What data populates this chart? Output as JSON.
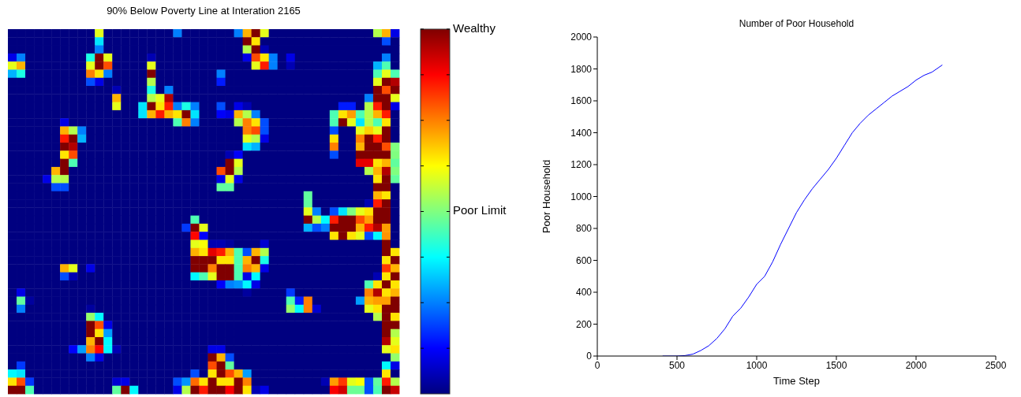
{
  "chart_data": [
    {
      "type": "heatmap",
      "title": "90% Below Poverty Line at Interation 2165",
      "categories": [
        null,
        null,
        null,
        null,
        null,
        null,
        null,
        null,
        null,
        null,
        null,
        null,
        null,
        null,
        null,
        null,
        null,
        null,
        null,
        null,
        null,
        null,
        null,
        null,
        null,
        null,
        null,
        null,
        null,
        null,
        null,
        null,
        null,
        null,
        null,
        null,
        null,
        null,
        null,
        null,
        null,
        null,
        null,
        null,
        null
      ],
      "y_categories": [
        null,
        null,
        null,
        null,
        null,
        null,
        null,
        null,
        null,
        null,
        null,
        null,
        null,
        null,
        null,
        null,
        null,
        null,
        null,
        null,
        null,
        null,
        null,
        null,
        null,
        null,
        null,
        null,
        null,
        null,
        null,
        null,
        null,
        null,
        null,
        null,
        null,
        null,
        null,
        null,
        null,
        null,
        null,
        null,
        null
      ],
      "clim": [
        0,
        1
      ],
      "cticks": [
        {
          "value": 0.125,
          "label": null
        },
        {
          "value": 0.25,
          "label": null
        },
        {
          "value": 0.375,
          "label": null
        },
        {
          "value": 0.5,
          "label": "Poor Limit"
        },
        {
          "value": 0.625,
          "label": null
        },
        {
          "value": 0.75,
          "label": null
        },
        {
          "value": 0.875,
          "label": null
        },
        {
          "value": 1,
          "label": "Wealthy"
        }
      ],
      "cells": [
        [
          0,
          0,
          0,
          0,
          0,
          0,
          0,
          0,
          0,
          0,
          0.6,
          0,
          0,
          0,
          0,
          0,
          0,
          0,
          0,
          0.25,
          0,
          0,
          0,
          0,
          0,
          0,
          0.25,
          0.7,
          1,
          0.6,
          0,
          0,
          0,
          0,
          0,
          0,
          0,
          0,
          0,
          0,
          0,
          0,
          0.55,
          0.7,
          0.1
        ],
        [
          0,
          0,
          0,
          0,
          0,
          0,
          0,
          0,
          0,
          0,
          0.35,
          0,
          0,
          0,
          0,
          0,
          0,
          0,
          0,
          0,
          0,
          0,
          0,
          0,
          0,
          0,
          0,
          1,
          0.65,
          0,
          0,
          0,
          0,
          0,
          0,
          0,
          0,
          0,
          0,
          0,
          0,
          0,
          0,
          0.2,
          0
        ],
        [
          0,
          0,
          0,
          0,
          0,
          0,
          0,
          0,
          0,
          0,
          0.25,
          0,
          0,
          0,
          0,
          0,
          0,
          0,
          0,
          0,
          0,
          0,
          0,
          0,
          0,
          0,
          0,
          0.55,
          1,
          0.05,
          0,
          0,
          0,
          0,
          0,
          0,
          0,
          0,
          0,
          0,
          0,
          0,
          0,
          0,
          0
        ],
        [
          0.1,
          0.25,
          0,
          0,
          0,
          0,
          0,
          0,
          0,
          0.4,
          1,
          0.6,
          0,
          0,
          0,
          0,
          0.05,
          0,
          0,
          0,
          0,
          0,
          0,
          0,
          0,
          0,
          0,
          0.1,
          0.8,
          0.65,
          0.25,
          0,
          0.1,
          0,
          0,
          0,
          0,
          0,
          0,
          0,
          0,
          0,
          0,
          0.25,
          0
        ],
        [
          0.6,
          0.7,
          0,
          0,
          0,
          0,
          0,
          0,
          0,
          0.6,
          1,
          0.8,
          0,
          0,
          0,
          0,
          0.6,
          0,
          0,
          0,
          0,
          0,
          0,
          0,
          0,
          0,
          0,
          0,
          0.6,
          0.85,
          0.25,
          0,
          0.05,
          0,
          0,
          0,
          0,
          0,
          0,
          0,
          0,
          0,
          0.3,
          0.45,
          0
        ],
        [
          0.3,
          0.4,
          0,
          0,
          0,
          0,
          0,
          0,
          0,
          0.75,
          0.65,
          0.25,
          0,
          0,
          0,
          0,
          1,
          0,
          0,
          0,
          0,
          0,
          0,
          0,
          0.25,
          0,
          0,
          0,
          0,
          0,
          0,
          0,
          0,
          0,
          0,
          0,
          0,
          0,
          0,
          0,
          0,
          0,
          0.45,
          0.6,
          0.45
        ],
        [
          0,
          0,
          0,
          0,
          0,
          0,
          0,
          0,
          0,
          0.2,
          0.1,
          0,
          0,
          0,
          0,
          0,
          0.55,
          0,
          0,
          0,
          0,
          0,
          0,
          0,
          0.15,
          0,
          0,
          0,
          0,
          0,
          0,
          0,
          0,
          0,
          0,
          0,
          0,
          0,
          0,
          0,
          0,
          0,
          0.6,
          1,
          0.95
        ],
        [
          0,
          0,
          0,
          0,
          0,
          0,
          0,
          0,
          0,
          0,
          0,
          0,
          0.05,
          0,
          0,
          0,
          0.4,
          0,
          0.25,
          0,
          0,
          0,
          0,
          0,
          0,
          0,
          0,
          0,
          0,
          0,
          0,
          0,
          0,
          0,
          0,
          0,
          0,
          0,
          0,
          0,
          0,
          0,
          1,
          0.8,
          1
        ],
        [
          0,
          0,
          0,
          0,
          0,
          0,
          0,
          0,
          0,
          0,
          0,
          0,
          0.7,
          0,
          0,
          0,
          0.55,
          0.6,
          0.95,
          0,
          0,
          0,
          0,
          0,
          0,
          0,
          0,
          0,
          0,
          0,
          0,
          0,
          0,
          0,
          0,
          0,
          0,
          0,
          0,
          0,
          0,
          0.25,
          1,
          1,
          0.6
        ],
        [
          0,
          0,
          0,
          0,
          0,
          0,
          0,
          0,
          0,
          0,
          0,
          0,
          0.6,
          0,
          0,
          0.35,
          1,
          0.65,
          0.85,
          0.25,
          0.4,
          0.25,
          0,
          0,
          0.2,
          0,
          0.1,
          0.05,
          0,
          0,
          0,
          0,
          0,
          0,
          0,
          0,
          0,
          0,
          0.15,
          0.15,
          0,
          0.55,
          0.85,
          1,
          0.1
        ],
        [
          0,
          0,
          0,
          0,
          0,
          0,
          0,
          0,
          0,
          0,
          0,
          0,
          0,
          0,
          0,
          0.35,
          0.7,
          0.85,
          0.7,
          0.65,
          1,
          0.35,
          0,
          0,
          0.12,
          0.1,
          0.7,
          0.55,
          0.25,
          0,
          0,
          0,
          0,
          0,
          0,
          0,
          0,
          0.45,
          0.65,
          0.72,
          0.45,
          0.55,
          0.7,
          0.85,
          0
        ],
        [
          0,
          0,
          0,
          0,
          0,
          0,
          0.1,
          0,
          0,
          0,
          0,
          0,
          0,
          0,
          0,
          0,
          0,
          0,
          0,
          0.45,
          0.75,
          0.25,
          0,
          0,
          0,
          0,
          0.55,
          0.75,
          0.65,
          0.2,
          0,
          0,
          0,
          0,
          0,
          0,
          0,
          0.45,
          1,
          0.6,
          0.35,
          0.55,
          0.45,
          0.65,
          0
        ],
        [
          0,
          0,
          0,
          0,
          0,
          0,
          0.7,
          0.55,
          0.25,
          0,
          0,
          0,
          0,
          0,
          0,
          0,
          0,
          0,
          0,
          0,
          0,
          0,
          0,
          0,
          0,
          0,
          0,
          0.75,
          0.8,
          0.2,
          0,
          0,
          0,
          0,
          0,
          0,
          0,
          0.2,
          0,
          0,
          0.6,
          0.67,
          0.6,
          1,
          0
        ],
        [
          0,
          0,
          0,
          0,
          0,
          0,
          0.85,
          1,
          0.3,
          0,
          0,
          0,
          0,
          0,
          0,
          0,
          0,
          0,
          0,
          0,
          0,
          0,
          0,
          0,
          0,
          0,
          0,
          0.6,
          0.55,
          0.1,
          0,
          0,
          0,
          0,
          0,
          0,
          0,
          0.65,
          0,
          0,
          0.75,
          1,
          0.85,
          1,
          0
        ],
        [
          0,
          0,
          0,
          0,
          0,
          0,
          1,
          0.95,
          0,
          0,
          0,
          0,
          0,
          0,
          0,
          0,
          0,
          0,
          0,
          0,
          0,
          0,
          0,
          0,
          0,
          0,
          0,
          0.35,
          0.3,
          0,
          0,
          0,
          0,
          0,
          0,
          0,
          0,
          0.75,
          0,
          0,
          0.7,
          1,
          1,
          0.8,
          0.5
        ],
        [
          0,
          0,
          0,
          0,
          0,
          0,
          0.65,
          0.8,
          0,
          0,
          0,
          0,
          0,
          0,
          0,
          0,
          0,
          0,
          0,
          0,
          0,
          0,
          0,
          0,
          0,
          0.05,
          0.12,
          0,
          0,
          0,
          0,
          0,
          0,
          0,
          0,
          0,
          0,
          0.2,
          0,
          0,
          1,
          1,
          1,
          1,
          0.5
        ],
        [
          0,
          0,
          0,
          0,
          0,
          0,
          1,
          0.45,
          0,
          0,
          0,
          0,
          0,
          0,
          0,
          0,
          0,
          0,
          0,
          0,
          0,
          0,
          0,
          0,
          0,
          1,
          0.6,
          0,
          0,
          0,
          0,
          0,
          0,
          0,
          0,
          0,
          0,
          0,
          0,
          0,
          0.9,
          0.9,
          0.65,
          0.7,
          0.47
        ],
        [
          0,
          0,
          0,
          0,
          0,
          0.7,
          1,
          0,
          0,
          0,
          0,
          0,
          0,
          0,
          0,
          0,
          0,
          0,
          0,
          0,
          0,
          0,
          0,
          0,
          0.8,
          1,
          0.55,
          0,
          0,
          0,
          0,
          0,
          0,
          0,
          0,
          0,
          0,
          0,
          0,
          0,
          0,
          0.55,
          0.7,
          0.95,
          0.5
        ],
        [
          0,
          0,
          0,
          0,
          0.1,
          0.55,
          0.55,
          0,
          0,
          0,
          0,
          0,
          0,
          0,
          0,
          0,
          0,
          0,
          0,
          0,
          0,
          0,
          0,
          0,
          0.1,
          0.6,
          0.1,
          0,
          0,
          0,
          0,
          0,
          0,
          0,
          0,
          0,
          0,
          0,
          0,
          0,
          0,
          0,
          0.65,
          1,
          0.47
        ],
        [
          0,
          0,
          0,
          0,
          0,
          0.2,
          0.2,
          0,
          0,
          0,
          0,
          0,
          0,
          0,
          0,
          0,
          0,
          0,
          0,
          0,
          0,
          0,
          0,
          0,
          0.47,
          0.47,
          0,
          0,
          0,
          0,
          0,
          0,
          0,
          0,
          0,
          0,
          0,
          0,
          0,
          0,
          0,
          0,
          1,
          1,
          0
        ],
        [
          0,
          0,
          0,
          0,
          0,
          0,
          0,
          0,
          0,
          0,
          0,
          0,
          0,
          0,
          0,
          0,
          0,
          0,
          0,
          0,
          0,
          0,
          0,
          0,
          0,
          0,
          0,
          0,
          0,
          0,
          0,
          0,
          0,
          0,
          0.47,
          0,
          0,
          0,
          0,
          0,
          0,
          0,
          0.7,
          0.65,
          0
        ],
        [
          0,
          0,
          0,
          0,
          0,
          0,
          0,
          0,
          0,
          0,
          0,
          0,
          0,
          0,
          0,
          0,
          0,
          0,
          0,
          0,
          0,
          0,
          0,
          0,
          0,
          0,
          0,
          0,
          0,
          0,
          0,
          0,
          0,
          0,
          0.47,
          0,
          0,
          0,
          0,
          0,
          0,
          0.05,
          0.85,
          1,
          0
        ],
        [
          0,
          0,
          0,
          0,
          0,
          0,
          0,
          0,
          0,
          0,
          0,
          0,
          0,
          0,
          0,
          0,
          0,
          0,
          0,
          0,
          0,
          0,
          0,
          0,
          0,
          0,
          0,
          0,
          0,
          0,
          0,
          0,
          0,
          0,
          0.6,
          0.25,
          0,
          0.2,
          0.35,
          0.5,
          0.6,
          0.65,
          1,
          1,
          0
        ],
        [
          0,
          0,
          0,
          0,
          0,
          0,
          0,
          0,
          0,
          0,
          0,
          0,
          0,
          0,
          0,
          0,
          0,
          0,
          0,
          0,
          0,
          0.45,
          0,
          0,
          0,
          0,
          0,
          0,
          0,
          0,
          0,
          0,
          0,
          0,
          1,
          0.55,
          0.37,
          0.85,
          1,
          1,
          0.8,
          0.72,
          1,
          1,
          0
        ],
        [
          0,
          0,
          0,
          0,
          0,
          0,
          0,
          0,
          0,
          0,
          0,
          0,
          0,
          0,
          0,
          0,
          0,
          0,
          0,
          0,
          0.18,
          1,
          0.6,
          0,
          0,
          0,
          0,
          0,
          0,
          0,
          0,
          0,
          0,
          0,
          0.3,
          0.2,
          0.25,
          1,
          1,
          1,
          0.7,
          0.85,
          0.95,
          0.72,
          0
        ],
        [
          0,
          0,
          0,
          0,
          0,
          0,
          0,
          0,
          0,
          0,
          0,
          0,
          0,
          0,
          0,
          0,
          0,
          0,
          0,
          0,
          0,
          0.87,
          0.12,
          0,
          0,
          0,
          0,
          0,
          0,
          0,
          0,
          0,
          0,
          0,
          0,
          0,
          0,
          0.65,
          1,
          0.65,
          0.6,
          0.2,
          0.37,
          0.73,
          0
        ],
        [
          0,
          0,
          0,
          0,
          0,
          0,
          0,
          0,
          0,
          0,
          0,
          0,
          0,
          0,
          0,
          0,
          0,
          0,
          0,
          0,
          0,
          0.6,
          0.62,
          0.05,
          0.05,
          0.03,
          0,
          0,
          0,
          0.08,
          0,
          0,
          0,
          0,
          0,
          0,
          0,
          0,
          0,
          0,
          0,
          0,
          0,
          1,
          0
        ],
        [
          0,
          0,
          0,
          0,
          0,
          0,
          0,
          0,
          0,
          0,
          0,
          0,
          0,
          0,
          0,
          0,
          0,
          0,
          0,
          0,
          0,
          0.7,
          0.65,
          0.9,
          0.85,
          0.7,
          0.45,
          0.2,
          0.7,
          0.55,
          0,
          0,
          0,
          0,
          0,
          0,
          0,
          0,
          0,
          0,
          0,
          0,
          0,
          1,
          0.65
        ],
        [
          0,
          0,
          0,
          0,
          0,
          0,
          0,
          0,
          0,
          0,
          0,
          0,
          0,
          0,
          0,
          0,
          0,
          0,
          0,
          0,
          0,
          1,
          1,
          1,
          0.65,
          0.65,
          0.45,
          0.7,
          1,
          0.4,
          0,
          0,
          0,
          0,
          0,
          0,
          0,
          0,
          0,
          0,
          0,
          0,
          0,
          0.65,
          1
        ],
        [
          0,
          0,
          0,
          0,
          0,
          0,
          0.7,
          0.6,
          0,
          0.1,
          0,
          0,
          0,
          0,
          0,
          0,
          0,
          0,
          0,
          0,
          0,
          1,
          1,
          0.75,
          1,
          1,
          0.45,
          0.75,
          0.7,
          0.1,
          0,
          0,
          0,
          0,
          0,
          0,
          0,
          0,
          0,
          0,
          0,
          0,
          0,
          0.82,
          0.7
        ],
        [
          0,
          0,
          0,
          0,
          0,
          0,
          0.2,
          0.05,
          0,
          0,
          0,
          0,
          0,
          0,
          0,
          0,
          0,
          0,
          0,
          0,
          0,
          0.37,
          0.45,
          0.6,
          1,
          1,
          0.45,
          0.1,
          0.37,
          0,
          0,
          0,
          0,
          0,
          0,
          0,
          0,
          0,
          0,
          0,
          0,
          0,
          0.05,
          0.65,
          1
        ],
        [
          0,
          0,
          0,
          0,
          0,
          0,
          0,
          0,
          0,
          0,
          0,
          0,
          0,
          0,
          0,
          0,
          0,
          0,
          0,
          0,
          0,
          0,
          0,
          0,
          0.12,
          0.25,
          0.27,
          0.37,
          0.1,
          0,
          0,
          0,
          0,
          0,
          0,
          0,
          0,
          0,
          0,
          0,
          0,
          0.45,
          0.65,
          1,
          0.65
        ],
        [
          0,
          0.1,
          0,
          0,
          0,
          0,
          0,
          0,
          0,
          0,
          0,
          0,
          0,
          0,
          0,
          0,
          0,
          0,
          0,
          0,
          0,
          0,
          0,
          0,
          0,
          0,
          0,
          0.03,
          0,
          0,
          0,
          0,
          0.18,
          0,
          0,
          0,
          0,
          0,
          0,
          0,
          0,
          0.75,
          0.95,
          0.65,
          0.7
        ],
        [
          0,
          0.47,
          0.03,
          0,
          0,
          0,
          0,
          0,
          0,
          0,
          0,
          0,
          0,
          0,
          0,
          0,
          0,
          0,
          0,
          0,
          0,
          0,
          0,
          0,
          0,
          0,
          0,
          0,
          0,
          0,
          0,
          0,
          0.45,
          0.15,
          0.75,
          0,
          0,
          0,
          0,
          0,
          0.28,
          0.7,
          0.72,
          0.72,
          1
        ],
        [
          0,
          0.25,
          0,
          0,
          0,
          0,
          0,
          0,
          0,
          0.03,
          0,
          0,
          0,
          0,
          0,
          0,
          0,
          0,
          0,
          0,
          0,
          0,
          0,
          0,
          0,
          0,
          0,
          0,
          0,
          0,
          0,
          0,
          0.52,
          0.37,
          0.75,
          0.08,
          0,
          0,
          0,
          0,
          0,
          0.6,
          0.65,
          1,
          1
        ],
        [
          0,
          0,
          0,
          0,
          0,
          0,
          0,
          0,
          0,
          0.52,
          0.37,
          0,
          0,
          0,
          0,
          0,
          0,
          0,
          0,
          0,
          0,
          0,
          0,
          0,
          0,
          0,
          0,
          0,
          0,
          0,
          0,
          0,
          0,
          0,
          0,
          0,
          0,
          0,
          0,
          0,
          0,
          0,
          0.55,
          1,
          0.65
        ],
        [
          0,
          0,
          0,
          0,
          0,
          0,
          0,
          0,
          0,
          1,
          0.8,
          0.1,
          0,
          0,
          0,
          0,
          0,
          0,
          0,
          0,
          0,
          0,
          0,
          0,
          0,
          0,
          0,
          0,
          0,
          0,
          0,
          0,
          0,
          0,
          0,
          0,
          0,
          0,
          0,
          0,
          0,
          0,
          0,
          1,
          1
        ],
        [
          0,
          0,
          0,
          0,
          0,
          0,
          0,
          0,
          0,
          1,
          0.65,
          0.28,
          0,
          0,
          0,
          0,
          0,
          0,
          0,
          0,
          0,
          0,
          0,
          0,
          0,
          0,
          0,
          0,
          0,
          0,
          0,
          0,
          0,
          0,
          0,
          0,
          0,
          0,
          0,
          0,
          0,
          0,
          0,
          1,
          0.55
        ],
        [
          0,
          0,
          0,
          0,
          0,
          0,
          0,
          0,
          0,
          0.7,
          1,
          0.37,
          0,
          0,
          0,
          0,
          0,
          0,
          0,
          0,
          0,
          0,
          0,
          0,
          0,
          0,
          0,
          0,
          0,
          0,
          0,
          0,
          0,
          0,
          0,
          0,
          0,
          0,
          0,
          0,
          0,
          0,
          0,
          0.95,
          0.6
        ],
        [
          0,
          0,
          0,
          0,
          0,
          0,
          0,
          0.12,
          0.28,
          0.75,
          0.87,
          0.37,
          0.05,
          0,
          0,
          0,
          0,
          0,
          0,
          0,
          0,
          0,
          0,
          0.1,
          0.1,
          0,
          0,
          0,
          0,
          0,
          0,
          0,
          0,
          0,
          0,
          0,
          0,
          0,
          0,
          0,
          0,
          0,
          0,
          0.6,
          0.65
        ],
        [
          0,
          0,
          0,
          0,
          0,
          0,
          0,
          0,
          0,
          0.25,
          0.1,
          0,
          0,
          0,
          0,
          0,
          0,
          0,
          0,
          0,
          0,
          0,
          0,
          1,
          0.7,
          0.2,
          0,
          0,
          0,
          0,
          0,
          0,
          0,
          0,
          0,
          0,
          0,
          0,
          0,
          0,
          0,
          0,
          0,
          0,
          0.52
        ],
        [
          0,
          0.18,
          0,
          0,
          0,
          0,
          0,
          0,
          0,
          0,
          0,
          0,
          0,
          0,
          0,
          0,
          0,
          0,
          0,
          0,
          0,
          0,
          0,
          0.8,
          1,
          0.47,
          0,
          0,
          0,
          0,
          0,
          0,
          0,
          0,
          0,
          0,
          0,
          0,
          0,
          0,
          0,
          0,
          0,
          0.37,
          0.1
        ],
        [
          0.37,
          0.35,
          0,
          0,
          0,
          0,
          0,
          0,
          0,
          0,
          0,
          0,
          0,
          0,
          0,
          0,
          0,
          0,
          0,
          0,
          0,
          0.2,
          0,
          0.65,
          1,
          0.8,
          0.7,
          0.28,
          0,
          0,
          0,
          0,
          0,
          0,
          0,
          0,
          0,
          0,
          0,
          0,
          0,
          0,
          0,
          0.65,
          0
        ],
        [
          0.65,
          0.8,
          0.18,
          0,
          0,
          0,
          0,
          0,
          0,
          0,
          0,
          0,
          0.08,
          0.1,
          0,
          0,
          0,
          0,
          0,
          0.2,
          0.27,
          0.77,
          0.65,
          1,
          0.65,
          0.65,
          1,
          0.75,
          0,
          0,
          0,
          0,
          0,
          0,
          0,
          0,
          0.05,
          0.72,
          0.82,
          0.6,
          0.62,
          0.2,
          0.47,
          0.85,
          0.55
        ],
        [
          1,
          1,
          0.45,
          0,
          0,
          0,
          0,
          0,
          0,
          0,
          0,
          0,
          0.47,
          1,
          0.37,
          0,
          0,
          0,
          0,
          0.1,
          0.55,
          1,
          0.85,
          1,
          1,
          0.88,
          1,
          0.65,
          0.05,
          0.1,
          0,
          0,
          0,
          0,
          0,
          0,
          0,
          0.88,
          0.92,
          0.48,
          0.48,
          0.2,
          0.45,
          1,
          0.93
        ]
      ]
    },
    {
      "type": "line",
      "title": "Number of Poor Household",
      "xlabel": "Time Step",
      "ylabel": "Poor Household",
      "x": [
        410,
        500,
        550,
        600,
        650,
        700,
        750,
        800,
        850,
        900,
        950,
        1000,
        1050,
        1100,
        1150,
        1200,
        1250,
        1300,
        1350,
        1400,
        1450,
        1500,
        1550,
        1600,
        1650,
        1700,
        1750,
        1800,
        1850,
        1900,
        1950,
        2000,
        2050,
        2100,
        2165
      ],
      "series": [
        {
          "color": "#0000ff",
          "values": [
            0,
            0,
            3,
            12,
            35,
            65,
            110,
            170,
            250,
            300,
            370,
            450,
            500,
            590,
            700,
            800,
            900,
            980,
            1050,
            1110,
            1170,
            1240,
            1320,
            1400,
            1460,
            1510,
            1550,
            1590,
            1630,
            1660,
            1690,
            1730,
            1760,
            1780,
            1825
          ]
        }
      ],
      "xlim": [
        0,
        2500
      ],
      "xticks": [
        0,
        500,
        1000,
        1500,
        2000,
        2500
      ],
      "ylim": [
        0,
        2000
      ],
      "yticks": [
        0,
        200,
        400,
        600,
        800,
        1000,
        1200,
        1400,
        1600,
        1800,
        2000
      ]
    }
  ]
}
